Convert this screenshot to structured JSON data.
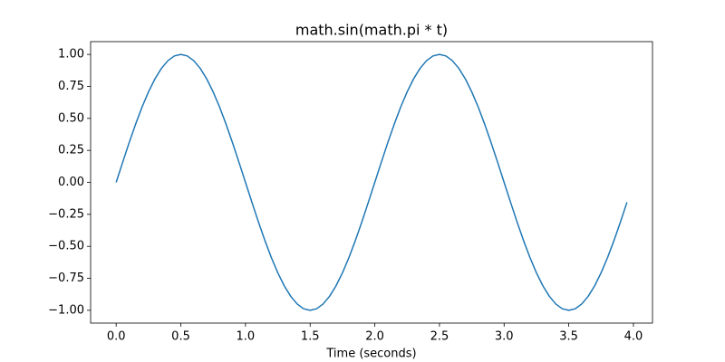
{
  "chart_data": {
    "type": "line",
    "title": "math.sin(math.pi * t)",
    "x_label": "Time (seconds)",
    "color": "#1f77b4",
    "x": [
      0,
      0.05,
      0.1,
      0.15,
      0.2,
      0.25,
      0.3,
      0.35,
      0.4,
      0.45,
      0.5,
      0.55,
      0.6,
      0.65,
      0.7,
      0.75,
      0.8,
      0.85,
      0.9,
      0.95,
      1,
      1.05,
      1.1,
      1.15,
      1.2,
      1.25,
      1.3,
      1.35,
      1.4,
      1.45,
      1.5,
      1.55,
      1.6,
      1.65,
      1.7,
      1.75,
      1.8,
      1.85,
      1.9,
      1.95,
      2,
      2.05,
      2.1,
      2.15,
      2.2,
      2.25,
      2.3,
      2.35,
      2.4,
      2.45,
      2.5,
      2.55,
      2.6,
      2.65,
      2.7,
      2.75,
      2.8,
      2.85,
      2.9,
      2.95,
      3,
      3.05,
      3.1,
      3.15,
      3.2,
      3.25,
      3.3,
      3.35,
      3.4,
      3.45,
      3.5,
      3.55,
      3.6,
      3.65,
      3.7,
      3.75,
      3.8,
      3.85,
      3.9,
      3.95
    ],
    "values": [
      0,
      0.156,
      0.309,
      0.454,
      0.588,
      0.707,
      0.809,
      0.891,
      0.951,
      0.988,
      1,
      0.988,
      0.951,
      0.891,
      0.809,
      0.707,
      0.588,
      0.454,
      0.309,
      0.156,
      0,
      -0.156,
      -0.309,
      -0.454,
      -0.588,
      -0.707,
      -0.809,
      -0.891,
      -0.951,
      -0.988,
      -1,
      -0.988,
      -0.951,
      -0.891,
      -0.809,
      -0.707,
      -0.588,
      -0.454,
      -0.309,
      -0.156,
      0,
      0.156,
      0.309,
      0.454,
      0.588,
      0.707,
      0.809,
      0.891,
      0.951,
      0.988,
      1,
      0.988,
      0.951,
      0.891,
      0.809,
      0.707,
      0.588,
      0.454,
      0.309,
      0.156,
      0,
      -0.156,
      -0.309,
      -0.454,
      -0.588,
      -0.707,
      -0.809,
      -0.891,
      -0.951,
      -0.988,
      -1,
      -0.988,
      -0.951,
      -0.891,
      -0.809,
      -0.707,
      -0.588,
      -0.454,
      -0.309,
      -0.156
    ],
    "xlim": [
      -0.1975,
      4.1475
    ],
    "xticks": [
      {
        "value": 0,
        "label": "0.0"
      },
      {
        "value": 0.5,
        "label": "0.5"
      },
      {
        "value": 1,
        "label": "1.0"
      },
      {
        "value": 1.5,
        "label": "1.5"
      },
      {
        "value": 2,
        "label": "2.0"
      },
      {
        "value": 2.5,
        "label": "2.5"
      },
      {
        "value": 3,
        "label": "3.0"
      },
      {
        "value": 3.5,
        "label": "3.5"
      },
      {
        "value": 4,
        "label": "4.0"
      }
    ],
    "ylim": [
      -1.1,
      1.1
    ],
    "yticks": [
      {
        "value": -1,
        "label": "−1.00"
      },
      {
        "value": -0.75,
        "label": "−0.75"
      },
      {
        "value": -0.5,
        "label": "−0.50"
      },
      {
        "value": -0.25,
        "label": "−0.25"
      },
      {
        "value": 0,
        "label": "0.00"
      },
      {
        "value": 0.25,
        "label": "0.25"
      },
      {
        "value": 0.5,
        "label": "0.50"
      },
      {
        "value": 0.75,
        "label": "0.75"
      },
      {
        "value": 1,
        "label": "1.00"
      }
    ],
    "grid": false
  }
}
